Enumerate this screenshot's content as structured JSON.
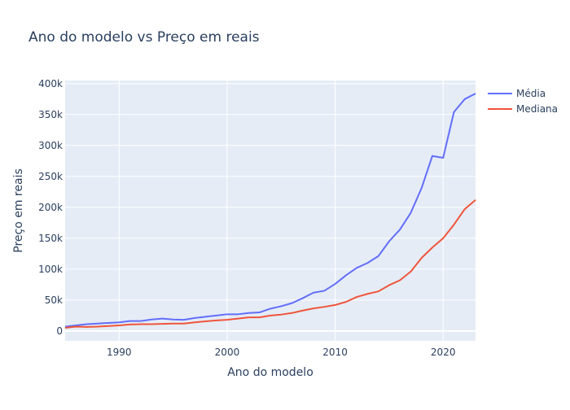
{
  "chart_data": {
    "type": "line",
    "title": "Ano do modelo vs Preço em reais",
    "xlabel": "Ano do modelo",
    "ylabel": "Preço em reais",
    "xlim": [
      1985,
      2023
    ],
    "ylim": [
      -16000,
      405000
    ],
    "x_ticks": [
      1990,
      2000,
      2010,
      2020
    ],
    "y_ticks": [
      0,
      50000,
      100000,
      150000,
      200000,
      250000,
      300000,
      350000,
      400000
    ],
    "y_tick_labels": [
      "0",
      "50k",
      "100k",
      "150k",
      "200k",
      "250k",
      "300k",
      "350k",
      "400k"
    ],
    "grid": true,
    "legend_position": "top-right",
    "background": "#e5ecf6",
    "x": [
      1985,
      1986,
      1987,
      1988,
      1989,
      1990,
      1991,
      1992,
      1993,
      1994,
      1995,
      1996,
      1997,
      1998,
      1999,
      2000,
      2001,
      2002,
      2003,
      2004,
      2005,
      2006,
      2007,
      2008,
      2009,
      2010,
      2011,
      2012,
      2013,
      2014,
      2015,
      2016,
      2017,
      2018,
      2019,
      2020,
      2021,
      2022,
      2023
    ],
    "series": [
      {
        "name": "Média",
        "color": "#636efa",
        "values": [
          7000,
          9000,
          11000,
          12000,
          13000,
          14000,
          16000,
          16000,
          18500,
          20000,
          18500,
          18000,
          21000,
          23000,
          25000,
          27000,
          27000,
          29000,
          30000,
          36000,
          40000,
          45000,
          53000,
          62000,
          65000,
          76000,
          90000,
          102000,
          110000,
          121000,
          145000,
          164000,
          191000,
          231000,
          283000,
          280000,
          354000,
          375000,
          384000
        ]
      },
      {
        "name": "Mediana",
        "color": "#EF553B",
        "values": [
          5000,
          7000,
          6500,
          7000,
          8000,
          9000,
          10500,
          11000,
          11000,
          11500,
          12000,
          12000,
          14000,
          15500,
          17000,
          18000,
          20000,
          22000,
          22000,
          25000,
          26500,
          29000,
          33000,
          36500,
          39000,
          42000,
          47000,
          55000,
          60000,
          64000,
          74000,
          82000,
          96000,
          118000,
          135000,
          150000,
          172000,
          197000,
          212000
        ]
      }
    ]
  }
}
